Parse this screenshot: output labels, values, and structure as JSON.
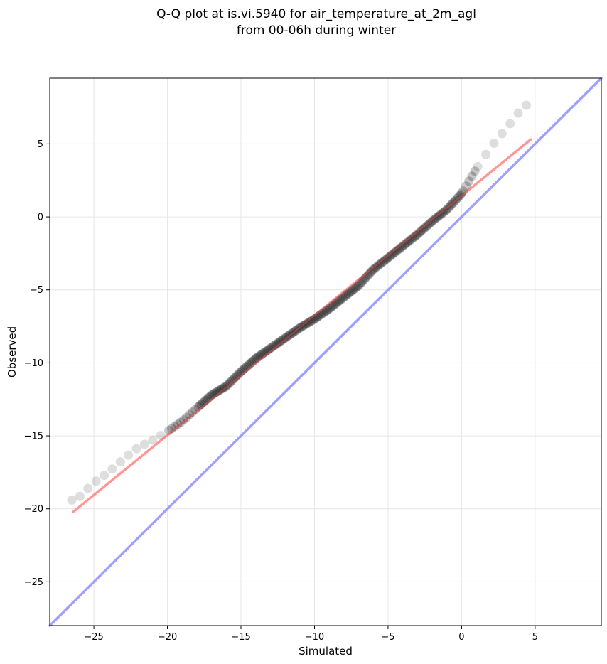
{
  "chart_data": {
    "type": "scatter",
    "title_lines": [
      "Q-Q plot at is.vi.5940 for air_temperature_at_2m_agl",
      "from 00-06h during winter"
    ],
    "xlabel": "Simulated",
    "ylabel": "Observed",
    "xlim": [
      -28,
      9.5
    ],
    "ylim": [
      -28,
      9.5
    ],
    "xticks": [
      -25,
      -20,
      -15,
      -10,
      -5,
      0,
      5
    ],
    "yticks": [
      -25,
      -20,
      -15,
      -10,
      -5,
      0,
      5
    ],
    "xtick_labels": [
      "−25",
      "−20",
      "−15",
      "−10",
      "−5",
      "0",
      "5"
    ],
    "ytick_labels": [
      "−25",
      "−20",
      "−15",
      "−10",
      "−5",
      "0",
      "5"
    ],
    "grid": true,
    "quantile_curve": {
      "x": [
        -26.5,
        -26.0,
        -25.0,
        -24.0,
        -23.0,
        -22.0,
        -21.0,
        -20.0,
        -19.0,
        -18.0,
        -17.0,
        -16.0,
        -15.0,
        -14.0,
        -13.0,
        -12.0,
        -11.0,
        -10.0,
        -9.0,
        -8.0,
        -7.0,
        -6.0,
        -5.0,
        -4.0,
        -3.0,
        -2.0,
        -1.0,
        0.0,
        1.0,
        2.0,
        3.0,
        4.0,
        4.8
      ],
      "y": [
        -19.4,
        -19.2,
        -18.2,
        -17.5,
        -16.6,
        -15.8,
        -15.3,
        -14.7,
        -14.0,
        -13.1,
        -12.2,
        -11.6,
        -10.6,
        -9.7,
        -9.0,
        -8.3,
        -7.6,
        -7.0,
        -6.3,
        -5.5,
        -4.7,
        -3.6,
        -2.8,
        -2.0,
        -1.2,
        -0.3,
        0.5,
        1.6,
        3.3,
        4.8,
        6.0,
        7.3,
        8.0
      ],
      "sparse_below": -20.0,
      "sparse_above": 1.0,
      "color": "#000000"
    },
    "regression_line": {
      "x": [
        -26.4,
        4.7
      ],
      "y": [
        -20.2,
        5.3
      ],
      "color": "#ff8080"
    },
    "identity_line": {
      "x": [
        -28,
        9.5
      ],
      "y": [
        -28,
        9.5
      ],
      "color": "#8080ff"
    }
  }
}
